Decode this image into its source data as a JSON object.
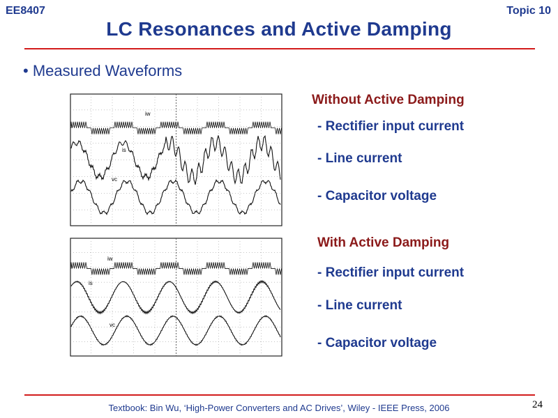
{
  "header": {
    "course_code": "EE8407",
    "topic": "Topic 10",
    "title": "LC Resonances and Active Damping"
  },
  "bullet": "• Measured Waveforms",
  "sections": [
    {
      "heading": "Without Active Damping",
      "items": [
        "- Rectifier input current",
        "- Line current",
        "- Capacitor voltage"
      ],
      "scope_labels": [
        "iw",
        "is",
        "vc"
      ]
    },
    {
      "heading": "With Active Damping",
      "items": [
        "- Rectifier input current",
        "- Line current",
        "- Capacitor voltage"
      ],
      "scope_labels": [
        "iw",
        "is",
        "vc"
      ]
    }
  ],
  "footer": {
    "textbook": "Textbook: Bin Wu, ‘High-Power Converters and AC Drives’, Wiley - IEEE Press, 2006",
    "page_number": "24"
  },
  "colors": {
    "title": "#1f3a8f",
    "section_heading": "#8b1a1a",
    "rule": "#d21b1b"
  }
}
